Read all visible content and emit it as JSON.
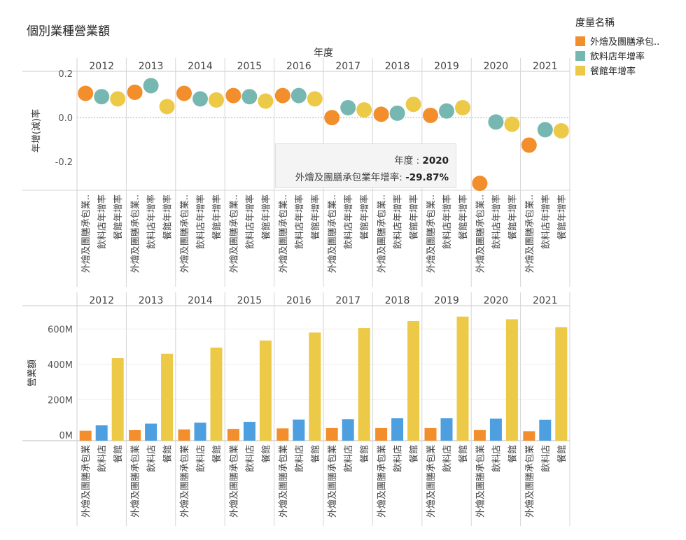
{
  "title": "個別業種營業額",
  "legend": {
    "title": "度量名稱",
    "items": [
      {
        "label": "外燴及團膳承包..",
        "color": "#f28e2b"
      },
      {
        "label": "飲料店年增率",
        "color": "#76b7b2"
      },
      {
        "label": "餐館年增率",
        "color": "#edc948"
      }
    ]
  },
  "tooltip": {
    "year_label": "年度 :",
    "year_value": "2020",
    "metric_label": "外燴及團膳承包業年增率:",
    "metric_value": "-29.87%"
  },
  "chart_data": [
    {
      "type": "scatter",
      "column_header": "年度",
      "categories": [
        "2012",
        "2013",
        "2014",
        "2015",
        "2016",
        "2017",
        "2018",
        "2019",
        "2020",
        "2021"
      ],
      "sub_categories": [
        "外燴及團膳承包業..",
        "飲料店年增率",
        "餐館年增率"
      ],
      "ylabel": "年增(減)率",
      "ylim": [
        -0.33,
        0.21
      ],
      "yticks": [
        0.2,
        0.0,
        -0.2
      ],
      "ytick_labels": [
        "0.2",
        "0.0",
        "-0.2"
      ],
      "series": [
        {
          "name": "外燴及團膳承包業年增率",
          "color": "#f28e2b",
          "values": [
            0.11,
            0.115,
            0.11,
            0.1,
            0.1,
            0.0,
            0.015,
            0.01,
            -0.2987,
            -0.125
          ]
        },
        {
          "name": "飲料店年增率",
          "color": "#76b7b2",
          "values": [
            0.095,
            0.145,
            0.085,
            0.095,
            0.1,
            0.045,
            0.02,
            0.03,
            -0.02,
            -0.055
          ]
        },
        {
          "name": "餐館年增率",
          "color": "#edc948",
          "values": [
            0.085,
            0.05,
            0.08,
            0.075,
            0.085,
            0.035,
            0.06,
            0.045,
            -0.03,
            -0.06
          ]
        }
      ]
    },
    {
      "type": "bar",
      "categories": [
        "2012",
        "2013",
        "2014",
        "2015",
        "2016",
        "2017",
        "2018",
        "2019",
        "2020",
        "2021"
      ],
      "sub_categories": [
        "外燴及團膳承包業",
        "飲料店",
        "餐館"
      ],
      "ylabel": "營業額",
      "ylim": [
        0,
        720
      ],
      "yticks": [
        0,
        200,
        400,
        600
      ],
      "ytick_labels": [
        "0M",
        "200M",
        "400M",
        "600M"
      ],
      "series": [
        {
          "name": "外燴及團膳承包業",
          "color": "#f28e2b",
          "values": [
            25,
            28,
            32,
            35,
            38,
            40,
            40,
            40,
            28,
            22
          ]
        },
        {
          "name": "飲料店",
          "color": "#4e9fe0",
          "values": [
            55,
            65,
            70,
            75,
            88,
            90,
            95,
            95,
            93,
            87
          ]
        },
        {
          "name": "餐館",
          "color": "#edc948",
          "values": [
            435,
            460,
            495,
            535,
            580,
            605,
            645,
            670,
            655,
            610
          ]
        }
      ]
    }
  ]
}
